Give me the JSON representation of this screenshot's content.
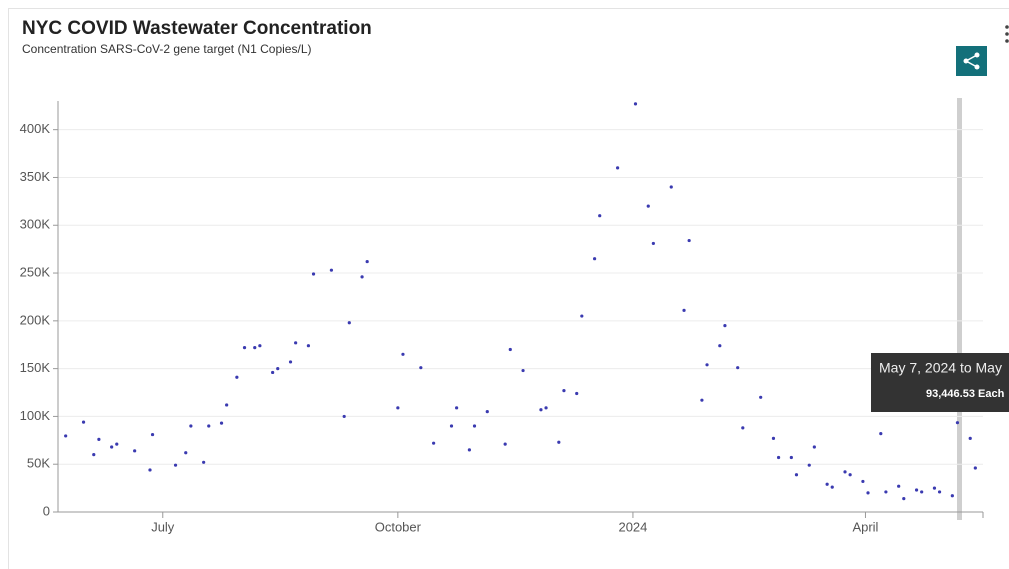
{
  "chart_data": {
    "type": "scatter",
    "title": "NYC COVID Wastewater Concentration",
    "subtitle": "Concentration SARS-CoV-2 gene target (N1 Copies/L)",
    "color": "#3a3ab0",
    "grid": true,
    "x": [
      "2023-05-24",
      "2023-05-31",
      "2023-06-04",
      "2023-06-06",
      "2023-06-11",
      "2023-06-13",
      "2023-06-20",
      "2023-06-26",
      "2023-06-27",
      "2023-07-06",
      "2023-07-10",
      "2023-07-12",
      "2023-07-17",
      "2023-07-19",
      "2023-07-24",
      "2023-07-26",
      "2023-07-30",
      "2023-08-02",
      "2023-08-06",
      "2023-08-08",
      "2023-08-13",
      "2023-08-15",
      "2023-08-20",
      "2023-08-22",
      "2023-08-27",
      "2023-08-29",
      "2023-09-05",
      "2023-09-10",
      "2023-09-12",
      "2023-09-17",
      "2023-09-19",
      "2023-10-01",
      "2023-10-03",
      "2023-10-10",
      "2023-10-15",
      "2023-10-22",
      "2023-10-24",
      "2023-10-29",
      "2023-10-31",
      "2023-11-05",
      "2023-11-12",
      "2023-11-14",
      "2023-11-19",
      "2023-11-26",
      "2023-11-28",
      "2023-12-03",
      "2023-12-05",
      "2023-12-10",
      "2023-12-12",
      "2023-12-17",
      "2023-12-19",
      "2023-12-26",
      "2024-01-02",
      "2024-01-07",
      "2024-01-09",
      "2024-01-16",
      "2024-01-21",
      "2024-01-23",
      "2024-01-28",
      "2024-01-30",
      "2024-02-04",
      "2024-02-06",
      "2024-02-11",
      "2024-02-13",
      "2024-02-20",
      "2024-02-25",
      "2024-02-27",
      "2024-03-03",
      "2024-03-05",
      "2024-03-10",
      "2024-03-12",
      "2024-03-17",
      "2024-03-19",
      "2024-03-24",
      "2024-03-26",
      "2024-03-31",
      "2024-04-02",
      "2024-04-07",
      "2024-04-09",
      "2024-04-14",
      "2024-04-16",
      "2024-04-21",
      "2024-04-23",
      "2024-04-28",
      "2024-04-30",
      "2024-05-05",
      "2024-05-07",
      "2024-05-12",
      "2024-05-14"
    ],
    "values": [
      79600,
      94000,
      60000,
      76000,
      68000,
      71000,
      64000,
      44000,
      81000,
      49000,
      62000,
      90000,
      52000,
      90000,
      93000,
      112000,
      141000,
      172000,
      172000,
      174000,
      146000,
      150000,
      157000,
      177000,
      174000,
      249000,
      253000,
      100000,
      198000,
      246000,
      262000,
      109000,
      165000,
      151000,
      72000,
      90000,
      109000,
      65000,
      90000,
      105000,
      71000,
      170000,
      148000,
      107000,
      109000,
      73000,
      127000,
      124000,
      205000,
      265000,
      310000,
      360000,
      427000,
      320000,
      281000,
      340000,
      211000,
      284000,
      117000,
      154000,
      174000,
      195000,
      151000,
      88000,
      120000,
      77000,
      57000,
      57000,
      39000,
      49000,
      68000,
      29000,
      26000,
      42000,
      39000,
      32000,
      20000,
      82000,
      21000,
      27000,
      14000,
      23000,
      21000,
      25000,
      21000,
      17000,
      93446.53,
      77000,
      46000
    ],
    "xlim": [
      "2023-05-21",
      "2024-05-17"
    ],
    "xticks": [
      {
        "value": "2023-07-01",
        "label": "July"
      },
      {
        "value": "2023-10-01",
        "label": "October"
      },
      {
        "value": "2024-01-01",
        "label": "2024"
      },
      {
        "value": "2024-04-01",
        "label": "April"
      }
    ],
    "ylim": [
      0,
      430000
    ],
    "yticks": [
      0,
      {
        "value": 50000,
        "label": "50K"
      },
      {
        "value": 100000,
        "label": "100K"
      },
      {
        "value": 150000,
        "label": "150K"
      },
      {
        "value": 200000,
        "label": "200K"
      },
      {
        "value": 250000,
        "label": "250K"
      },
      {
        "value": 300000,
        "label": "300K"
      },
      {
        "value": 350000,
        "label": "350K"
      },
      {
        "value": 400000,
        "label": "400K"
      }
    ],
    "tooltip": {
      "title": "May 7, 2024 to May",
      "value_label": "93,446.53 Each"
    }
  }
}
